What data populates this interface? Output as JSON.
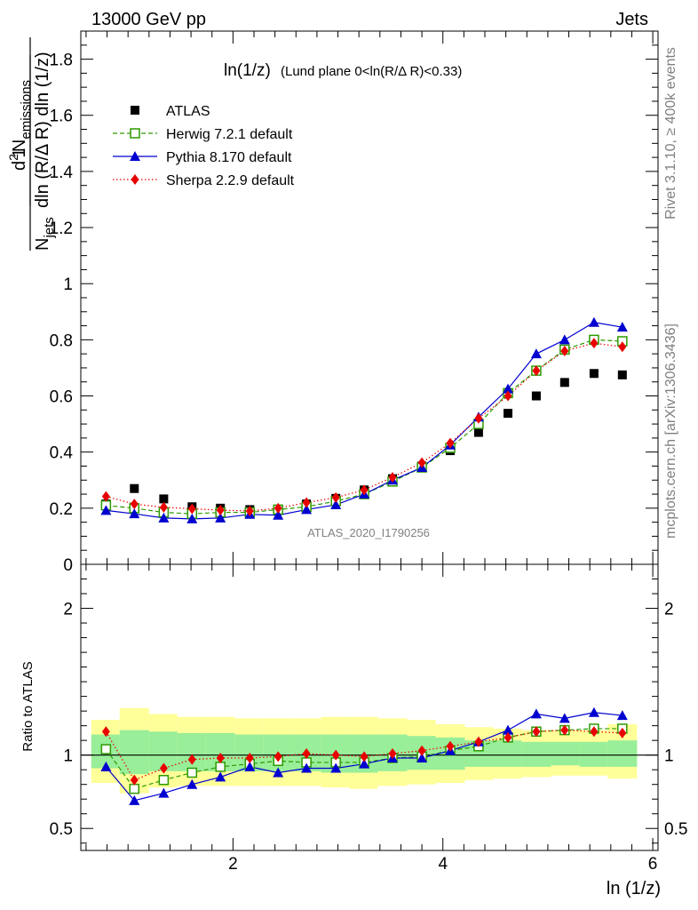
{
  "header": {
    "energy": "13000 GeV pp",
    "process": "Jets",
    "side_top": "Rivet 3.1.10, ≥ 400k events",
    "side_bottom": "mcplots.cern.ch [arXiv:1306.3436]",
    "analysis_id": "ATLAS_2020_I1790256"
  },
  "chart_data": [
    {
      "type": "scatter",
      "title": "ln(1/z) (Lund plane 0<ln(R/Δ R)<0.33)",
      "title_main": "ln(1/z)",
      "title_rest": "(Lund plane 0<ln(R/Δ R)<0.33)",
      "ylabel": "1/N_jets d²N_emissions / dln(R/ΔR) dln(1/z)",
      "ylabel_parts": {
        "prefix": "d",
        "power": "2",
        "n": "N",
        "emissions": "emissions",
        "ratio_num": "1",
        "denominator": "dln (R/Δ R) dln (1/z)",
        "njets_n": "N",
        "jets": "jets"
      },
      "xlabel": "ln (1/z)",
      "xlim": [
        0.55,
        6.05
      ],
      "ylim": [
        0,
        1.9
      ],
      "yticks": [
        0,
        0.2,
        0.4,
        0.6,
        0.8,
        1,
        1.2,
        1.4,
        1.6,
        1.8
      ],
      "ytick_labels": [
        "0",
        "0.2",
        "0.4",
        "0.6",
        "0.8",
        "1",
        "1.2",
        "1.4",
        "1.6",
        "1.8"
      ],
      "legend_position": "top-left",
      "x": [
        0.79,
        1.06,
        1.34,
        1.61,
        1.88,
        2.16,
        2.43,
        2.7,
        2.98,
        3.25,
        3.52,
        3.8,
        4.07,
        4.34,
        4.62,
        4.89,
        5.16,
        5.44,
        5.71
      ],
      "series": [
        {
          "name": "ATLAS",
          "color": "#000000",
          "marker": "square",
          "values": [
            0.215,
            0.27,
            0.233,
            0.205,
            0.2,
            0.195,
            0.195,
            0.215,
            0.235,
            0.265,
            0.305,
            0.35,
            0.405,
            0.47,
            0.538,
            0.6,
            0.648,
            0.68,
            0.675
          ]
        },
        {
          "name": "Herwig 7.2.1 default",
          "color": "#2c9a00",
          "marker": "open-square",
          "dash": "5,3",
          "values": [
            0.21,
            0.2,
            0.185,
            0.18,
            0.185,
            0.185,
            0.195,
            0.205,
            0.225,
            0.25,
            0.295,
            0.345,
            0.415,
            0.5,
            0.61,
            0.69,
            0.765,
            0.8,
            0.795
          ]
        },
        {
          "name": "Pythia 8.170 default",
          "color": "#0000d0",
          "marker": "triangle",
          "dash": "",
          "values": [
            0.192,
            0.18,
            0.165,
            0.162,
            0.165,
            0.178,
            0.175,
            0.195,
            0.212,
            0.25,
            0.3,
            0.345,
            0.425,
            0.525,
            0.625,
            0.75,
            0.8,
            0.862,
            0.845
          ]
        },
        {
          "name": "Sherpa 2.2.9 default",
          "color": "#e80000",
          "marker": "diamond",
          "dash": "1.5,2.5",
          "values": [
            0.242,
            0.215,
            0.203,
            0.198,
            0.193,
            0.19,
            0.2,
            0.22,
            0.238,
            0.265,
            0.31,
            0.362,
            0.432,
            0.52,
            0.6,
            0.69,
            0.76,
            0.788,
            0.775
          ]
        }
      ]
    },
    {
      "type": "line",
      "ylabel": "Ratio to ATLAS",
      "xlabel": "ln (1/z)",
      "xlim": [
        0.55,
        6.05
      ],
      "ylim": [
        0.35,
        2.3
      ],
      "yticks": [
        0.5,
        1,
        2
      ],
      "ytick_labels": [
        "0.5",
        "1",
        "2"
      ],
      "xticks": [
        2,
        4,
        6
      ],
      "xtick_labels": [
        "2",
        "4",
        "6"
      ],
      "x": [
        0.79,
        1.06,
        1.34,
        1.61,
        1.88,
        2.16,
        2.43,
        2.7,
        2.98,
        3.25,
        3.52,
        3.8,
        4.07,
        4.34,
        4.62,
        4.89,
        5.16,
        5.44,
        5.71
      ],
      "bin_edges": [
        0.65,
        0.92,
        1.2,
        1.47,
        1.74,
        2.02,
        2.29,
        2.56,
        2.84,
        3.11,
        3.38,
        3.66,
        3.93,
        4.21,
        4.48,
        4.75,
        5.03,
        5.3,
        5.57,
        5.85
      ],
      "band_yellow": {
        "color": "#ffff99",
        "low": [
          0.81,
          0.74,
          0.78,
          0.79,
          0.79,
          0.79,
          0.79,
          0.79,
          0.78,
          0.77,
          0.79,
          0.8,
          0.81,
          0.83,
          0.84,
          0.85,
          0.86,
          0.86,
          0.84
        ],
        "high": [
          1.24,
          1.32,
          1.28,
          1.26,
          1.26,
          1.25,
          1.25,
          1.25,
          1.26,
          1.26,
          1.25,
          1.24,
          1.21,
          1.19,
          1.18,
          1.17,
          1.17,
          1.17,
          1.21
        ]
      },
      "band_green": {
        "color": "#99ee99",
        "low": [
          0.91,
          0.87,
          0.89,
          0.89,
          0.89,
          0.89,
          0.89,
          0.89,
          0.88,
          0.88,
          0.89,
          0.9,
          0.9,
          0.92,
          0.92,
          0.92,
          0.93,
          0.92,
          0.92
        ],
        "high": [
          1.14,
          1.17,
          1.16,
          1.15,
          1.15,
          1.14,
          1.14,
          1.14,
          1.14,
          1.14,
          1.14,
          1.13,
          1.12,
          1.1,
          1.1,
          1.09,
          1.09,
          1.09,
          1.1
        ]
      },
      "series": [
        {
          "name": "Herwig 7.2.1 default",
          "color": "#2c9a00",
          "marker": "open-square",
          "dash": "5,3",
          "values": [
            1.04,
            0.77,
            0.83,
            0.88,
            0.92,
            0.94,
            0.96,
            0.95,
            0.95,
            0.95,
            0.98,
            0.99,
            1.03,
            1.06,
            1.12,
            1.16,
            1.17,
            1.18,
            1.18
          ]
        },
        {
          "name": "Pythia 8.170 default",
          "color": "#0000d0",
          "marker": "triangle",
          "dash": "",
          "values": [
            0.92,
            0.69,
            0.74,
            0.8,
            0.85,
            0.92,
            0.88,
            0.91,
            0.91,
            0.94,
            0.98,
            0.98,
            1.03,
            1.09,
            1.17,
            1.28,
            1.25,
            1.29,
            1.27
          ]
        },
        {
          "name": "Sherpa 2.2.9 default",
          "color": "#e80000",
          "marker": "diamond",
          "dash": "1.5,2.5",
          "values": [
            1.16,
            0.83,
            0.91,
            0.97,
            0.98,
            0.98,
            0.99,
            1.01,
            1.0,
            0.99,
            1.01,
            1.03,
            1.06,
            1.09,
            1.12,
            1.16,
            1.17,
            1.16,
            1.15
          ]
        }
      ]
    }
  ]
}
